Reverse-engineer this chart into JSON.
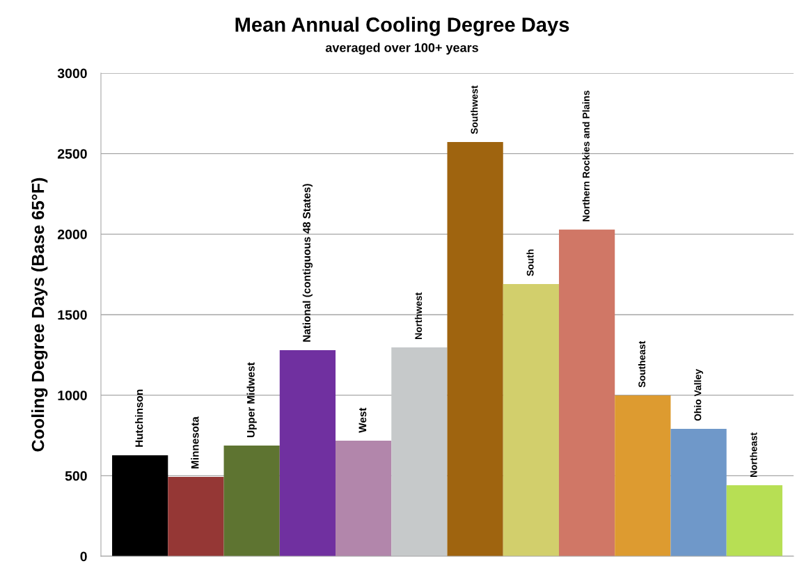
{
  "chart_data": {
    "type": "bar",
    "title": "Mean Annual Cooling Degree Days",
    "subtitle": "averaged over 100+ years",
    "ylabel": "Cooling Degree Days (Base 65°F)",
    "categories": [
      "Hutchinson",
      "Minnesota",
      "Upper Midwest",
      "National (contiguous 48 States)",
      "West",
      "Northwest",
      "Southwest",
      "South",
      "Northern Rockies and Plains",
      "Southeast",
      "Ohio Valley",
      "Northeast"
    ],
    "values": [
      627,
      493,
      687,
      1280,
      718,
      1297,
      2572,
      1690,
      2028,
      999,
      791,
      441
    ],
    "colors": [
      "#000000",
      "#953735",
      "#5e7431",
      "#7030a0",
      "#b286ab",
      "#c6c9ca",
      "#9f640f",
      "#d2cf6c",
      "#d07766",
      "#dd9b30",
      "#6f98c9",
      "#b7df54"
    ],
    "ylim": [
      0,
      3000
    ],
    "yticks": [
      0,
      500,
      1000,
      1500,
      2000,
      2500,
      3000
    ],
    "grid": "y"
  }
}
